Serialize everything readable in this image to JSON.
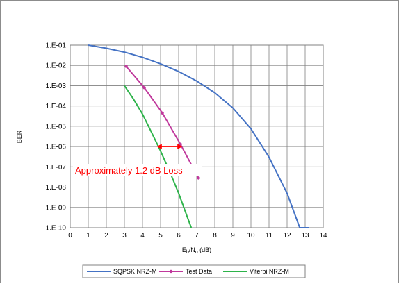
{
  "chart_data": {
    "type": "line",
    "title": "",
    "xlabel": "Eb/No (dB)",
    "ylabel": "BER",
    "xlim": [
      0,
      14
    ],
    "ylim": [
      1e-10,
      0.1
    ],
    "log_y": true,
    "grid": true,
    "x_ticks": [
      "0",
      "1",
      "2",
      "3",
      "4",
      "5",
      "6",
      "7",
      "8",
      "9",
      "10",
      "11",
      "12",
      "13",
      "14"
    ],
    "y_ticks": [
      {
        "label": "1.E-01",
        "value": 0.1
      },
      {
        "label": "1.E-02",
        "value": 0.01
      },
      {
        "label": "1.E-03",
        "value": 0.001
      },
      {
        "label": "1.E-04",
        "value": 0.0001
      },
      {
        "label": "1.E-05",
        "value": 1e-05
      },
      {
        "label": "1.E-06",
        "value": 1e-06
      },
      {
        "label": "1.E-07",
        "value": 1e-07
      },
      {
        "label": "1.E-08",
        "value": 1e-08
      },
      {
        "label": "1.E-09",
        "value": 1e-09
      },
      {
        "label": "1.E-10",
        "value": 1e-10
      }
    ],
    "legend_position": "bottom",
    "series": [
      {
        "name": "SQPSK NRZ-M",
        "color": "#4472c4",
        "marker": false,
        "x": [
          1.0,
          2.0,
          3.0,
          4.0,
          5.0,
          6.0,
          7.0,
          8.0,
          9.0,
          10.0,
          11.0,
          12.0,
          12.7,
          13.2
        ],
        "y": [
          0.1,
          0.07,
          0.045,
          0.025,
          0.012,
          0.005,
          0.0017,
          0.00045,
          8e-05,
          7.5e-06,
          3e-07,
          5e-09,
          1e-10,
          1e-10
        ]
      },
      {
        "name": "Test Data",
        "color": "#c0399c",
        "marker": true,
        "x": [
          3.1,
          4.1,
          5.1,
          6.1,
          7.1
        ],
        "y": [
          0.009,
          0.0008,
          4.5e-05,
          1.3e-06,
          2.8e-08
        ]
      },
      {
        "name": "Viterbi NRZ-M",
        "color": "#2db34a",
        "marker": false,
        "x": [
          3.0,
          3.5,
          4.0,
          4.5,
          5.0,
          5.5,
          6.0,
          6.5,
          6.7
        ],
        "y": [
          0.001,
          0.00022,
          4e-05,
          5e-06,
          6e-07,
          6e-08,
          5e-09,
          3e-10,
          1e-10
        ]
      }
    ],
    "annotations": [
      {
        "text": "Approximately 1.2 dB Loss",
        "color": "#ff0000",
        "arrow_from_x": 4.8,
        "arrow_to_x": 6.2,
        "arrow_y": 1e-06
      }
    ]
  }
}
